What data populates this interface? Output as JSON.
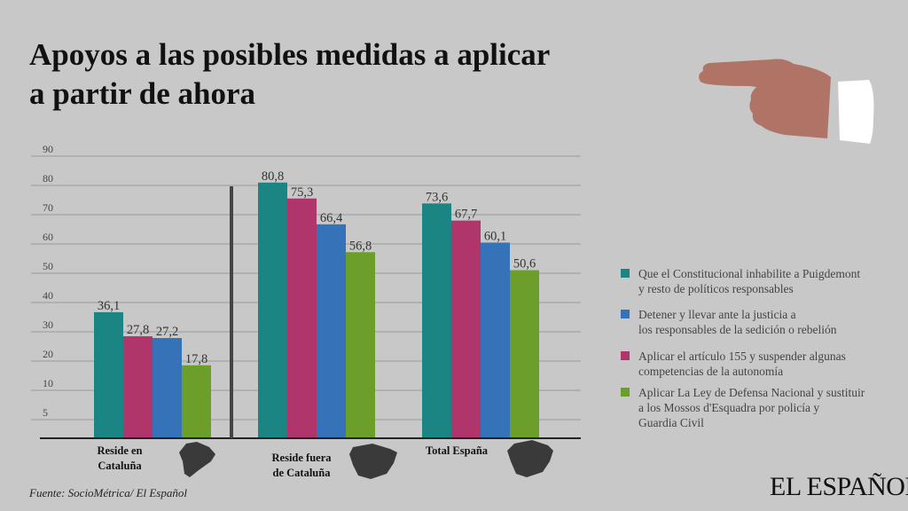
{
  "title_line1": "Apoyos a las posibles medidas a aplicar",
  "title_line2": "a partir de ahora",
  "chart_data": {
    "type": "bar",
    "title": "Apoyos a las posibles medidas a aplicar a partir de ahora",
    "categories": [
      "Reside en Cataluña",
      "Reside fuera de Cataluña",
      "Total España"
    ],
    "category_lines": [
      [
        "Reside en",
        "Cataluña"
      ],
      [
        "Reside fuera",
        "de Cataluña"
      ],
      [
        "Total España"
      ]
    ],
    "yticks": [
      "90",
      "80",
      "70",
      "60",
      "50",
      "40",
      "30",
      "20",
      "10",
      "5"
    ],
    "ylim": [
      0,
      90
    ],
    "grid": true,
    "legend_position": "right",
    "series": [
      {
        "name": "Que el Constitucional inhabilite a Puigdemont y resto de políticos responsables",
        "color": "#1a8582",
        "values": [
          36.1,
          80.8,
          73.6
        ],
        "labels": [
          "36,1",
          "80,8",
          "73,6"
        ]
      },
      {
        "name": "Aplicar el artículo 155 y suspender algunas competencias de la autonomía",
        "color": "#b0356b",
        "values": [
          27.8,
          75.3,
          67.7
        ],
        "labels": [
          "27,8",
          "75,3",
          "67,7"
        ]
      },
      {
        "name": "Detener y llevar ante la justicia a los responsables de la sedición o rebelión",
        "color": "#3572b8",
        "values": [
          27.2,
          66.4,
          60.1
        ],
        "labels": [
          "27,2",
          "66,4",
          "60,1"
        ]
      },
      {
        "name": "Aplicar La Ley de Defensa Nacional y sustituir a los Mossos d'Esquadra por policía y Guardia Civil",
        "color": "#6c9e2a",
        "values": [
          17.8,
          56.8,
          50.6
        ],
        "labels": [
          "17,8",
          "56,8",
          "50,6"
        ]
      }
    ]
  },
  "legend": [
    {
      "line1": "Que el Constitucional inhabilite a Puigdemont",
      "line2": "y resto de políticos responsables",
      "color": "#1a8582"
    },
    {
      "line1": "Detener y llevar ante la justicia a",
      "line2": "los responsables de la sedición  o rebelión",
      "color": "#3572b8"
    },
    {
      "line1": "Aplicar el artículo 155 y suspender algunas",
      "line2": "competencias de la autonomía",
      "color": "#b0356b"
    },
    {
      "line1": "Aplicar  La Ley de Defensa Nacional y sustituir",
      "line2": "a los Mossos d'Esquadra por policía y",
      "line3": "Guardia Civil",
      "color": "#6c9e2a"
    }
  ],
  "source": "Fuente: SocioMétrica/ El Español",
  "logo": "EL ESPAÑOL"
}
